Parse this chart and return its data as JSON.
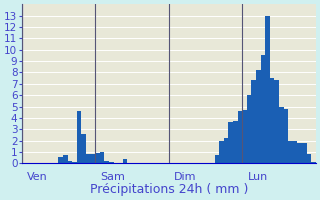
{
  "title": "Précipitations 24h ( mm )",
  "ylabel": "",
  "xlabel": "Précipitations 24h ( mm )",
  "ylim": [
    0,
    14
  ],
  "yticks": [
    0,
    1,
    2,
    3,
    4,
    5,
    6,
    7,
    8,
    9,
    10,
    11,
    12,
    13
  ],
  "background_color": "#d0f0f0",
  "plot_bg_color": "#e8e8d8",
  "bar_color": "#1a5fb4",
  "bar_color2": "#4da6ff",
  "grid_color": "#ffffff",
  "day_label_color": "#4444cc",
  "axis_color": "#0000cc",
  "values": [
    0,
    0,
    0,
    0,
    0,
    0,
    0,
    0,
    0.6,
    0.7,
    0.2,
    0.1,
    4.6,
    2.6,
    0.8,
    0.8,
    0.9,
    1.0,
    0.2,
    0.1,
    0,
    0,
    0.4,
    0,
    0,
    0,
    0,
    0,
    0,
    0,
    0,
    0,
    0,
    0,
    0,
    0,
    0,
    0,
    0,
    0,
    0,
    0,
    0.7,
    2.0,
    2.2,
    3.6,
    3.7,
    4.6,
    4.7,
    6.0,
    7.3,
    8.2,
    9.5,
    13.0,
    7.5,
    7.3,
    5.0,
    4.8,
    2.0,
    2.0,
    1.8,
    1.8,
    0.8,
    0.1
  ],
  "day_positions": [
    0,
    16,
    32,
    48
  ],
  "day_labels": [
    "Ven",
    "Sam",
    "Dim",
    "Lun"
  ],
  "n_bars": 64,
  "title_fontsize": 9,
  "tick_fontsize": 7.5,
  "day_fontsize": 8
}
